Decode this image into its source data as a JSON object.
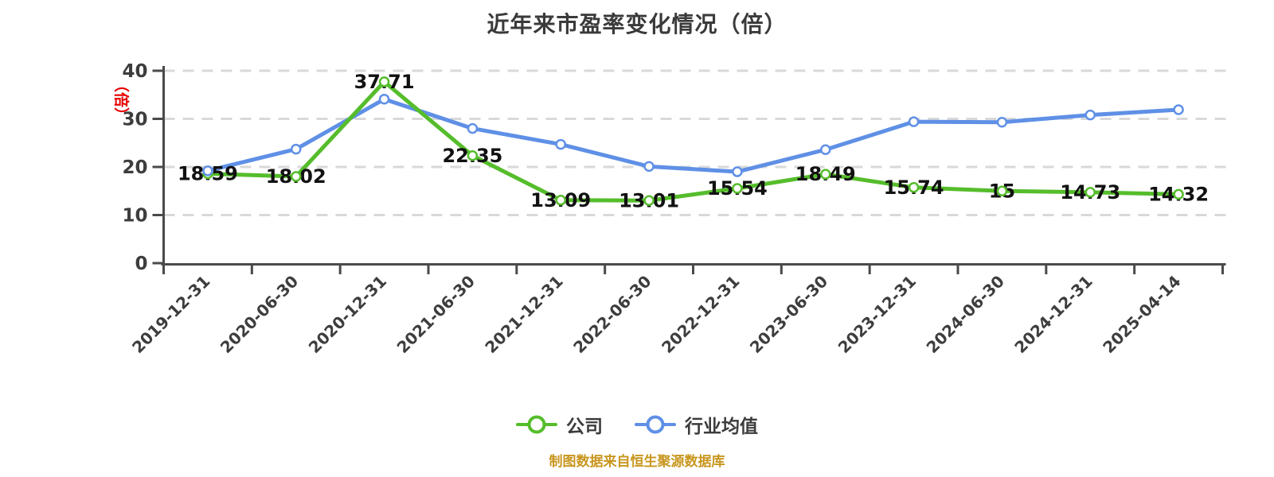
{
  "title": "近年来市盈率变化情况（倍）",
  "footer": {
    "note": "制图数据来自恒生聚源数据库",
    "color": "#c8961e"
  },
  "chart_data": {
    "type": "line",
    "title": "近年来市盈率变化情况（倍）",
    "categories": [
      "2019-12-31",
      "2020-06-30",
      "2020-12-31",
      "2021-06-30",
      "2021-12-31",
      "2022-06-30",
      "2022-12-31",
      "2023-06-30",
      "2023-12-31",
      "2024-06-30",
      "2024-12-31",
      "2025-04-14"
    ],
    "series": [
      {
        "name": "公司",
        "color": "#55bd2b",
        "marker": "white-circle",
        "values": [
          18.59,
          18.02,
          37.71,
          22.35,
          13.09,
          13.01,
          15.54,
          18.49,
          15.74,
          15,
          14.73,
          14.32
        ],
        "value_labels": [
          "18.59",
          "18.02",
          "37.71",
          "22.35",
          "13.09",
          "13.01",
          "15.54",
          "18.49",
          "15.74",
          "15",
          "14.73",
          "14.32"
        ],
        "show_value_labels": true
      },
      {
        "name": "行业均值",
        "color": "#5f90e6",
        "marker": "white-circle",
        "values": [
          19.2,
          23.7,
          34.1,
          28.0,
          24.7,
          20.1,
          19.0,
          23.6,
          29.4,
          29.3,
          30.8,
          31.9
        ],
        "show_value_labels": false
      }
    ],
    "ylim": [
      0,
      40
    ],
    "yticks": [
      0,
      10,
      20,
      30,
      40
    ],
    "y_unit_label": "（倍）",
    "y_unit_color": "#e60000",
    "x_label_rotation": -45,
    "grid": {
      "horizontal": true,
      "style": "dashed",
      "color": "#d9d9d9"
    },
    "axis_color": "#4a4a4a",
    "tick_label_color": "#3d3d3d",
    "value_label_color": "#111111",
    "legend_position": "bottom"
  }
}
